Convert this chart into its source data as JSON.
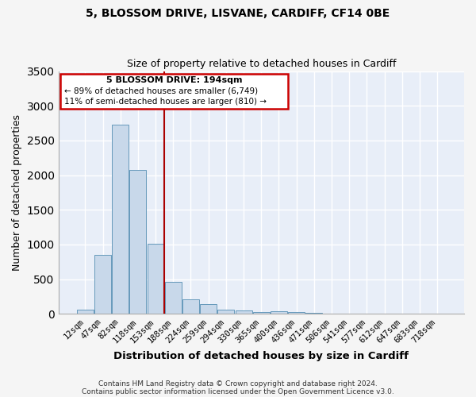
{
  "title1": "5, BLOSSOM DRIVE, LISVANE, CARDIFF, CF14 0BE",
  "title2": "Size of property relative to detached houses in Cardiff",
  "xlabel": "Distribution of detached houses by size in Cardiff",
  "ylabel": "Number of detached properties",
  "bar_color": "#c8d8ea",
  "bar_edge_color": "#6699bb",
  "plot_bg_color": "#e8eef8",
  "fig_bg_color": "#f5f5f5",
  "grid_color": "#ffffff",
  "categories": [
    "12sqm",
    "47sqm",
    "82sqm",
    "118sqm",
    "153sqm",
    "188sqm",
    "224sqm",
    "259sqm",
    "294sqm",
    "330sqm",
    "365sqm",
    "400sqm",
    "436sqm",
    "471sqm",
    "506sqm",
    "541sqm",
    "577sqm",
    "612sqm",
    "647sqm",
    "683sqm",
    "718sqm"
  ],
  "values": [
    60,
    850,
    2730,
    2070,
    1010,
    460,
    210,
    145,
    65,
    50,
    25,
    40,
    20,
    15,
    5,
    0,
    0,
    0,
    0,
    5,
    0
  ],
  "vline_x": 4.5,
  "vline_color": "#aa0000",
  "ann_line1": "5 BLOSSOM DRIVE: 194sqm",
  "ann_line2": "← 89% of detached houses are smaller (6,749)",
  "ann_line3": "11% of semi-detached houses are larger (810) →",
  "ylim": [
    0,
    3500
  ],
  "yticks": [
    0,
    500,
    1000,
    1500,
    2000,
    2500,
    3000,
    3500
  ],
  "footer1": "Contains HM Land Registry data © Crown copyright and database right 2024.",
  "footer2": "Contains public sector information licensed under the Open Government Licence v3.0."
}
